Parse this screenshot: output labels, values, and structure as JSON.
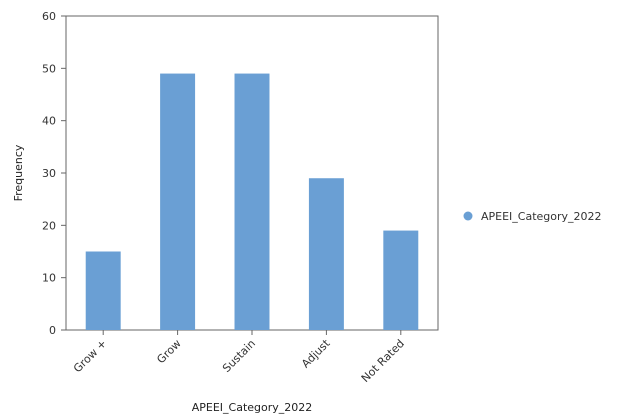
{
  "chart_data": {
    "type": "bar",
    "categories": [
      "Grow +",
      "Grow",
      "Sustain",
      "Adjust",
      "Not Rated"
    ],
    "series": [
      {
        "name": "APEEI_Category_2022",
        "values": [
          15,
          49,
          49,
          29,
          19
        ]
      }
    ],
    "xlabel": "APEEI_Category_2022",
    "ylabel": "Frequency",
    "ylim": [
      0,
      60
    ],
    "yticks": [
      0,
      10,
      20,
      30,
      40,
      50,
      60
    ],
    "grid": false,
    "legend": "right",
    "bar_color": "#6a9fd4"
  }
}
